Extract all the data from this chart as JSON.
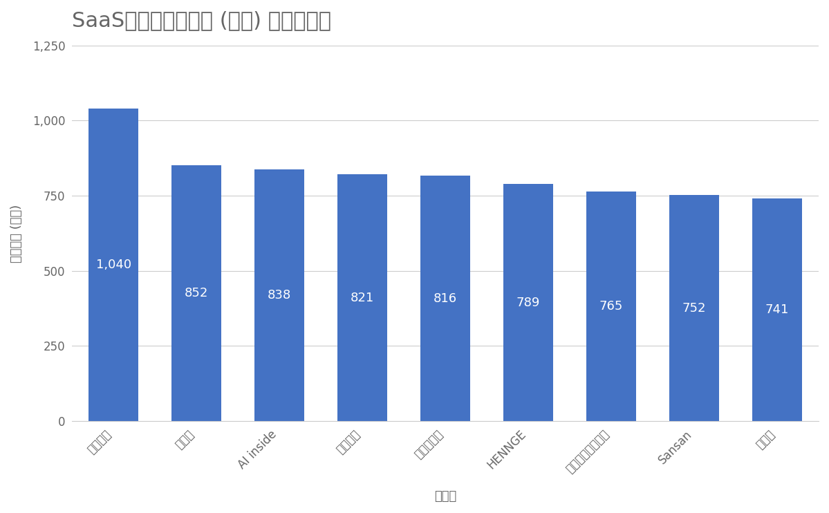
{
  "title": "SaaS企業の平均年収 (万円) ランキング",
  "xlabel": "企業名",
  "ylabel": "平均年収 (万円)",
  "categories": [
    "プレイド",
    "スカラ",
    "AI inside",
    "トヨクモ",
    "アステリア",
    "HENNGE",
    "マネーフォワード",
    "Sansan",
    "ラクス"
  ],
  "values": [
    1040,
    852,
    838,
    821,
    816,
    789,
    765,
    752,
    741
  ],
  "bar_color": "#4472C4",
  "bar_label_color": "#ffffff",
  "background_color": "#ffffff",
  "title_color": "#666666",
  "axis_label_color": "#666666",
  "tick_color": "#666666",
  "grid_color": "#cccccc",
  "ylim": [
    0,
    1250
  ],
  "yticks": [
    0,
    250,
    500,
    750,
    1000,
    1250
  ],
  "title_fontsize": 22,
  "axis_label_fontsize": 13,
  "tick_fontsize": 12,
  "bar_label_fontsize": 13
}
